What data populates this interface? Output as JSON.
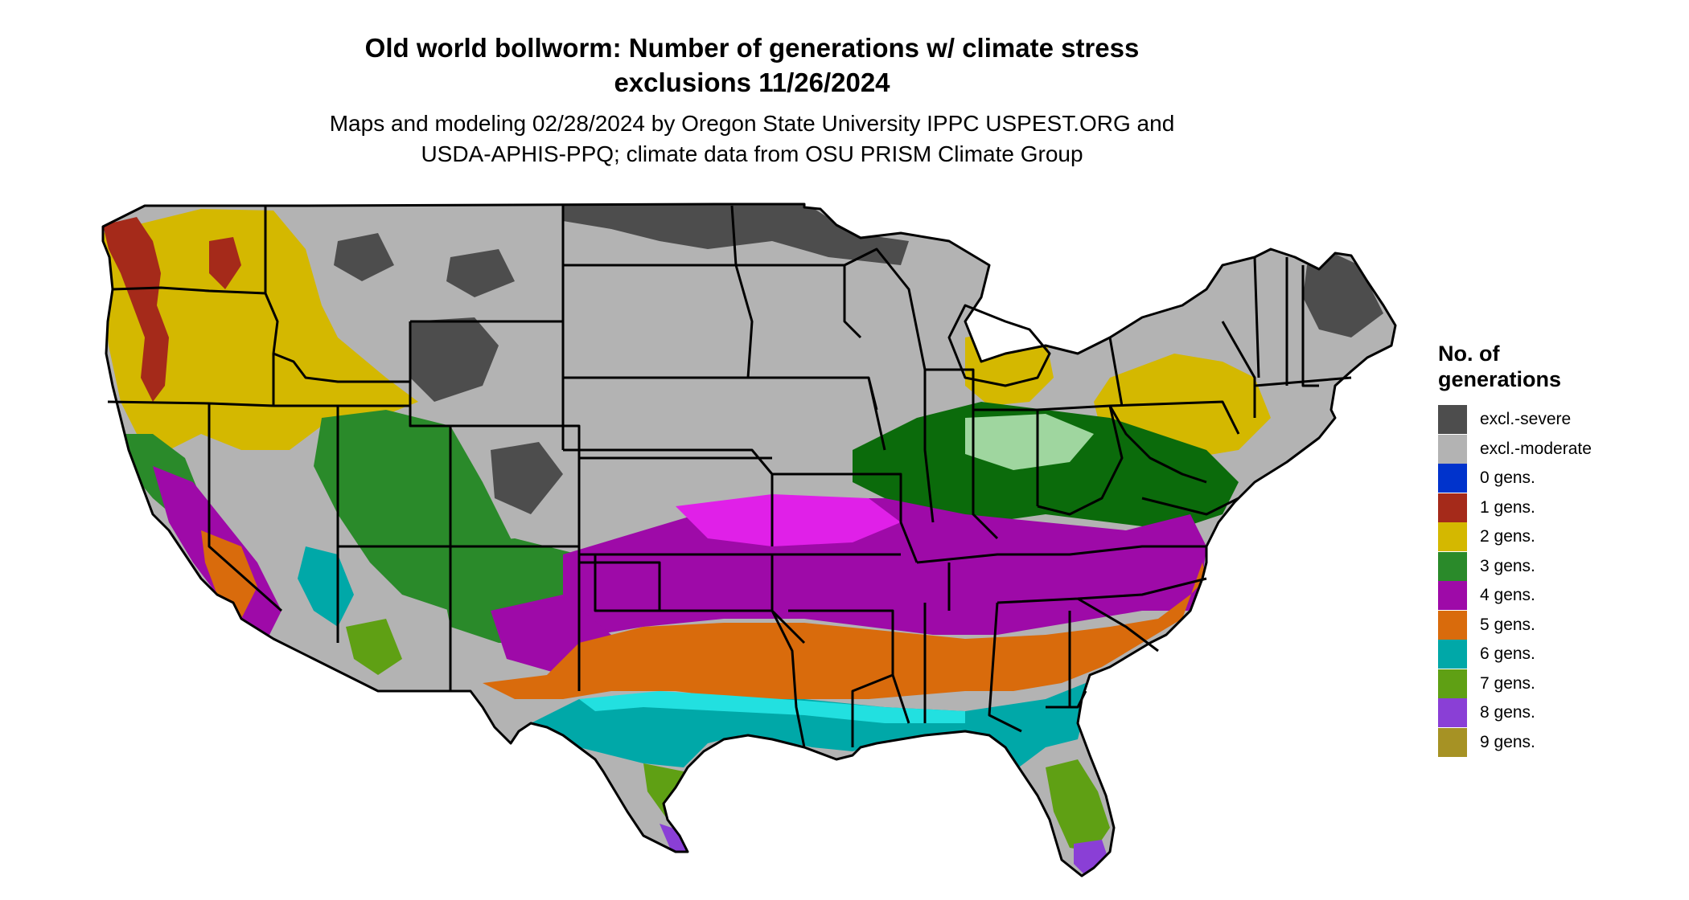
{
  "title": {
    "line1": "Old world bollworm: Number of generations w/ climate stress",
    "line2": "exclusions 11/26/2024"
  },
  "subtitle": {
    "line1": "Maps and modeling 02/28/2024 by Oregon State University IPPC USPEST.ORG and",
    "line2": "USDA-APHIS-PPQ; climate data from OSU PRISM Climate Group"
  },
  "legend": {
    "title_line1": "No. of",
    "title_line2": "generations",
    "items": [
      {
        "label": "excl.-severe",
        "color": "#4d4d4d"
      },
      {
        "label": "excl.-moderate",
        "color": "#b3b3b3"
      },
      {
        "label": "0 gens.",
        "color": "#0033cc"
      },
      {
        "label": "1 gens.",
        "color": "#a52a1a"
      },
      {
        "label": "2 gens.",
        "color": "#d4b800"
      },
      {
        "label": "3 gens.",
        "color": "#2a8a2a"
      },
      {
        "label": "4 gens.",
        "color": "#9e0aa8"
      },
      {
        "label": "5 gens.",
        "color": "#d96b0c"
      },
      {
        "label": "6 gens.",
        "color": "#00a8a8"
      },
      {
        "label": "7 gens.",
        "color": "#5fa014"
      },
      {
        "label": "8 gens.",
        "color": "#8a3fd6"
      },
      {
        "label": "9 gens.",
        "color": "#a69224"
      }
    ]
  },
  "map_colors": {
    "excl_severe": "#4d4d4d",
    "excl_moderate": "#b3b3b3",
    "gen1": "#a52a1a",
    "gen2": "#d4b800",
    "gen3": "#2a8a2a",
    "gen3_light": "#9fd69f",
    "gen3_dark": "#0b6b0b",
    "gen4": "#9e0aa8",
    "gen4_bright": "#e020e8",
    "gen5": "#d96b0c",
    "gen6": "#00a8a8",
    "gen6_bright": "#22e0e0",
    "gen7": "#5fa014",
    "gen8": "#8a3fd6"
  }
}
